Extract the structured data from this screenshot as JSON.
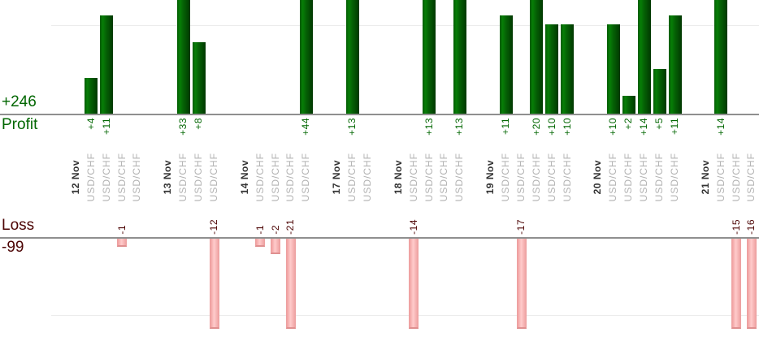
{
  "chart_data": {
    "type": "bar",
    "orientation": "vertical",
    "description": "Daily trade profit/loss bar chart split into a Profit pane (top) and Loss pane (bottom), one bar per trade, grouped by date",
    "sections": {
      "profit": {
        "axis_label": "Profit",
        "total": "+246",
        "text_color": "#006600",
        "bar_color_main": "#077e07",
        "bar_color_dark": "#013801"
      },
      "loss": {
        "axis_label": "Loss",
        "total": "-99",
        "text_color": "#4d0505",
        "bar_color_main": "#ffcbcb",
        "bar_color_edge": "#efa3a3"
      }
    },
    "grid": true,
    "gridlines_at_values": [
      10,
      -10
    ],
    "profit_axis_visible_max": 12.7,
    "loss_axis_visible_min": -11.7,
    "x_axis_note": "bars taller than the visible pane are clipped at the pane edge",
    "groups": [
      {
        "date": "12 Nov",
        "trades": [
          {
            "symbol": "USD/CHF",
            "value": 4,
            "label": "+4"
          },
          {
            "symbol": "USD/CHF",
            "value": 11,
            "label": "+11"
          },
          {
            "symbol": "USD/CHF",
            "value": -1,
            "label": "-1"
          },
          {
            "symbol": "USD/CHF",
            "value": 0,
            "label": ""
          }
        ]
      },
      {
        "date": "13 Nov",
        "trades": [
          {
            "symbol": "USD/CHF",
            "value": 33,
            "label": "+33"
          },
          {
            "symbol": "USD/CHF",
            "value": 8,
            "label": "+8"
          },
          {
            "symbol": "USD/CHF",
            "value": -12,
            "label": "-12"
          }
        ]
      },
      {
        "date": "14 Nov",
        "trades": [
          {
            "symbol": "USD/CHF",
            "value": -1,
            "label": "-1"
          },
          {
            "symbol": "USD/CHF",
            "value": -2,
            "label": "-2"
          },
          {
            "symbol": "USD/CHF",
            "value": -21,
            "label": "-21"
          },
          {
            "symbol": "USD/CHF",
            "value": 44,
            "label": "+44"
          }
        ]
      },
      {
        "date": "17 Nov",
        "trades": [
          {
            "symbol": "USD/CHF",
            "value": 13,
            "label": "+13"
          },
          {
            "symbol": "USD/CHF",
            "value": 0,
            "label": ""
          }
        ]
      },
      {
        "date": "18 Nov",
        "trades": [
          {
            "symbol": "USD/CHF",
            "value": -14,
            "label": "-14"
          },
          {
            "symbol": "USD/CHF",
            "value": 13,
            "label": "+13"
          },
          {
            "symbol": "USD/CHF",
            "value": 0,
            "label": ""
          },
          {
            "symbol": "USD/CHF",
            "value": 13,
            "label": "+13"
          }
        ]
      },
      {
        "date": "19 Nov",
        "trades": [
          {
            "symbol": "USD/CHF",
            "value": 11,
            "label": "+11"
          },
          {
            "symbol": "USD/CHF",
            "value": -17,
            "label": "-17"
          },
          {
            "symbol": "USD/CHF",
            "value": 20,
            "label": "+20"
          },
          {
            "symbol": "USD/CHF",
            "value": 10,
            "label": "+10"
          },
          {
            "symbol": "USD/CHF",
            "value": 10,
            "label": "+10"
          }
        ]
      },
      {
        "date": "20 Nov",
        "trades": [
          {
            "symbol": "USD/CHF",
            "value": 10,
            "label": "+10"
          },
          {
            "symbol": "USD/CHF",
            "value": 2,
            "label": "+2"
          },
          {
            "symbol": "USD/CHF",
            "value": 14,
            "label": "+14"
          },
          {
            "symbol": "USD/CHF",
            "value": 5,
            "label": "+5"
          },
          {
            "symbol": "USD/CHF",
            "value": 11,
            "label": "+11"
          }
        ]
      },
      {
        "date": "21 Nov",
        "trades": [
          {
            "symbol": "USD/CHF",
            "value": 14,
            "label": "+14"
          },
          {
            "symbol": "USD/CHF",
            "value": -15,
            "label": "-15"
          },
          {
            "symbol": "USD/CHF",
            "value": -16,
            "label": "-16"
          }
        ]
      }
    ]
  }
}
